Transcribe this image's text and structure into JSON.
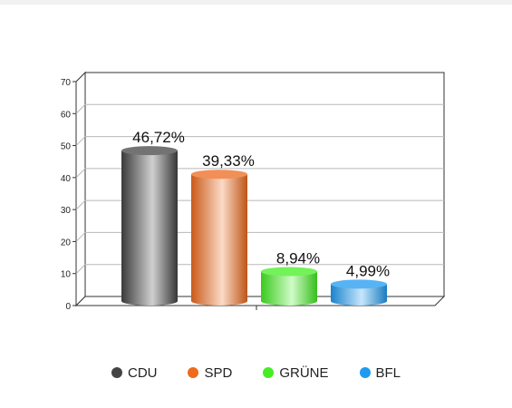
{
  "chart_data": {
    "type": "bar",
    "style": "3d-cylinder",
    "categories": [
      "CDU",
      "SPD",
      "GRÜNE",
      "BFL"
    ],
    "values": [
      46.72,
      39.33,
      8.94,
      4.99
    ],
    "data_labels": [
      "46,72%",
      "39,33%",
      "8,94%",
      "4,99%"
    ],
    "colors": [
      "#444444",
      "#ee6a1d",
      "#44ee22",
      "#1f9af0"
    ],
    "ylim": [
      0,
      70
    ],
    "yticks": [
      0,
      10,
      20,
      30,
      40,
      50,
      60,
      70
    ],
    "grid": true,
    "legend_position": "bottom"
  }
}
